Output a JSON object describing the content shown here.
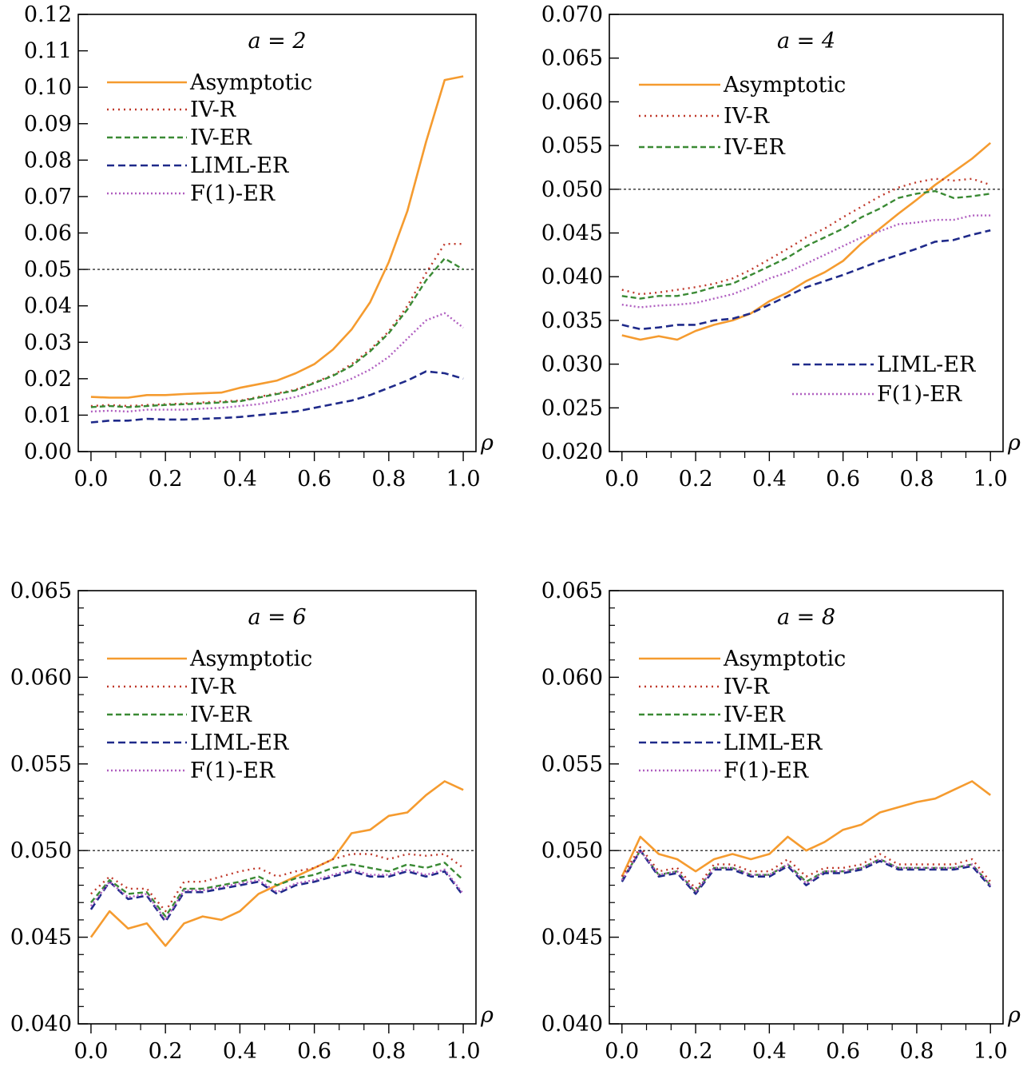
{
  "colors": {
    "asymptotic": "#f59b2f",
    "iv_r": "#c0392b",
    "iv_er": "#3a8a34",
    "liml_er": "#1f2a8a",
    "f1_er": "#b05fc0",
    "reference": "#000000"
  },
  "series_order": [
    "Asymptotic",
    "IV-R",
    "IV-ER",
    "LIML-ER",
    "F(1)-ER"
  ],
  "chart_data": [
    {
      "type": "line",
      "title": "a = 2",
      "xlabel": "ρ",
      "ylabel": "",
      "xlim": [
        0,
        1
      ],
      "ylim": [
        0,
        0.12
      ],
      "reference_y": 0.05,
      "x_ticks": [
        "0.0",
        "0.2",
        "0.4",
        "0.6",
        "0.8",
        "1.0"
      ],
      "y_ticks": [
        "0.00",
        "0.01",
        "0.02",
        "0.03",
        "0.04",
        "0.05",
        "0.06",
        "0.07",
        "0.08",
        "0.09",
        "0.10",
        "0.11",
        "0.12"
      ],
      "legend_placement": "top-left",
      "x": [
        0,
        0.05,
        0.1,
        0.15,
        0.2,
        0.25,
        0.3,
        0.35,
        0.4,
        0.45,
        0.5,
        0.55,
        0.6,
        0.65,
        0.7,
        0.75,
        0.8,
        0.85,
        0.9,
        0.95,
        1.0
      ],
      "series": [
        {
          "name": "Asymptotic",
          "values": [
            0.015,
            0.0148,
            0.0148,
            0.0155,
            0.0155,
            0.0158,
            0.016,
            0.0162,
            0.0175,
            0.0185,
            0.0195,
            0.0215,
            0.024,
            0.028,
            0.0335,
            0.041,
            0.052,
            0.066,
            0.085,
            0.102,
            0.103
          ]
        },
        {
          "name": "IV-R",
          "values": [
            0.0125,
            0.0128,
            0.0125,
            0.0128,
            0.013,
            0.0132,
            0.0135,
            0.0138,
            0.014,
            0.015,
            0.016,
            0.017,
            0.019,
            0.021,
            0.024,
            0.028,
            0.033,
            0.04,
            0.049,
            0.057,
            0.057
          ]
        },
        {
          "name": "IV-ER",
          "values": [
            0.0122,
            0.0125,
            0.0122,
            0.0125,
            0.0128,
            0.013,
            0.0132,
            0.0135,
            0.0138,
            0.0148,
            0.0158,
            0.0168,
            0.0188,
            0.0208,
            0.0235,
            0.0275,
            0.0325,
            0.039,
            0.047,
            0.053,
            0.05
          ]
        },
        {
          "name": "LIML-ER",
          "values": [
            0.008,
            0.0085,
            0.0085,
            0.009,
            0.0088,
            0.0088,
            0.009,
            0.0092,
            0.0095,
            0.01,
            0.0105,
            0.011,
            0.012,
            0.013,
            0.014,
            0.0155,
            0.0175,
            0.0195,
            0.022,
            0.0215,
            0.02
          ]
        },
        {
          "name": "F(1)-ER",
          "values": [
            0.011,
            0.0112,
            0.011,
            0.0115,
            0.0115,
            0.0115,
            0.0118,
            0.012,
            0.0125,
            0.013,
            0.014,
            0.015,
            0.0165,
            0.018,
            0.02,
            0.0225,
            0.026,
            0.031,
            0.036,
            0.038,
            0.034
          ]
        }
      ]
    },
    {
      "type": "line",
      "title": "a = 4",
      "xlabel": "ρ",
      "ylabel": "",
      "xlim": [
        0,
        1
      ],
      "ylim": [
        0.02,
        0.07
      ],
      "reference_y": 0.05,
      "x_ticks": [
        "0.0",
        "0.2",
        "0.4",
        "0.6",
        "0.8",
        "1.0"
      ],
      "y_ticks": [
        "0.020",
        "0.025",
        "0.030",
        "0.035",
        "0.040",
        "0.045",
        "0.050",
        "0.055",
        "0.060",
        "0.065",
        "0.070"
      ],
      "legend_placement": "top-left; LIML-ER and F(1)-ER at bottom-right",
      "x": [
        0,
        0.05,
        0.1,
        0.15,
        0.2,
        0.25,
        0.3,
        0.35,
        0.4,
        0.45,
        0.5,
        0.55,
        0.6,
        0.65,
        0.7,
        0.75,
        0.8,
        0.85,
        0.9,
        0.95,
        1.0
      ],
      "series": [
        {
          "name": "Asymptotic",
          "values": [
            0.0333,
            0.0328,
            0.0332,
            0.0328,
            0.0338,
            0.0345,
            0.035,
            0.0358,
            0.0372,
            0.0382,
            0.0395,
            0.0405,
            0.0418,
            0.0438,
            0.0455,
            0.0472,
            0.0488,
            0.0505,
            0.052,
            0.0535,
            0.0553
          ]
        },
        {
          "name": "IV-R",
          "values": [
            0.0385,
            0.038,
            0.0382,
            0.0385,
            0.0388,
            0.0392,
            0.0398,
            0.0408,
            0.042,
            0.0432,
            0.0445,
            0.0455,
            0.0468,
            0.048,
            0.0492,
            0.0502,
            0.0508,
            0.0512,
            0.051,
            0.0512,
            0.0505
          ]
        },
        {
          "name": "IV-ER",
          "values": [
            0.0378,
            0.0375,
            0.0378,
            0.0378,
            0.0382,
            0.0388,
            0.0392,
            0.0402,
            0.0412,
            0.0422,
            0.0435,
            0.0445,
            0.0455,
            0.0468,
            0.0478,
            0.049,
            0.0495,
            0.0498,
            0.049,
            0.0492,
            0.0495
          ]
        },
        {
          "name": "LIML-ER",
          "values": [
            0.0345,
            0.034,
            0.0342,
            0.0345,
            0.0345,
            0.035,
            0.0352,
            0.0358,
            0.0368,
            0.0378,
            0.0388,
            0.0395,
            0.0402,
            0.041,
            0.0418,
            0.0425,
            0.0432,
            0.044,
            0.0442,
            0.0448,
            0.0453
          ]
        },
        {
          "name": "F(1)-ER",
          "values": [
            0.0368,
            0.0365,
            0.0367,
            0.0368,
            0.037,
            0.0375,
            0.038,
            0.0388,
            0.0398,
            0.0405,
            0.0415,
            0.0425,
            0.0435,
            0.0445,
            0.0452,
            0.046,
            0.0462,
            0.0465,
            0.0465,
            0.047,
            0.047
          ]
        }
      ]
    },
    {
      "type": "line",
      "title": "a = 6",
      "xlabel": "ρ",
      "ylabel": "",
      "xlim": [
        0,
        1
      ],
      "ylim": [
        0.04,
        0.065
      ],
      "reference_y": 0.05,
      "x_ticks": [
        "0.0",
        "0.2",
        "0.4",
        "0.6",
        "0.8",
        "1.0"
      ],
      "y_ticks": [
        "0.040",
        "0.045",
        "0.050",
        "0.055",
        "0.060",
        "0.065"
      ],
      "legend_placement": "top-left",
      "x": [
        0,
        0.05,
        0.1,
        0.15,
        0.2,
        0.25,
        0.3,
        0.35,
        0.4,
        0.45,
        0.5,
        0.55,
        0.6,
        0.65,
        0.7,
        0.75,
        0.8,
        0.85,
        0.9,
        0.95,
        1.0
      ],
      "series": [
        {
          "name": "Asymptotic",
          "values": [
            0.045,
            0.0465,
            0.0455,
            0.0458,
            0.0445,
            0.0458,
            0.0462,
            0.046,
            0.0465,
            0.0475,
            0.048,
            0.0485,
            0.049,
            0.0495,
            0.051,
            0.0512,
            0.052,
            0.0522,
            0.0532,
            0.054,
            0.0535
          ]
        },
        {
          "name": "IV-R",
          "values": [
            0.0475,
            0.0485,
            0.0478,
            0.0478,
            0.0465,
            0.0482,
            0.0482,
            0.0485,
            0.0488,
            0.049,
            0.0485,
            0.0488,
            0.049,
            0.0495,
            0.0498,
            0.0498,
            0.0495,
            0.0498,
            0.0497,
            0.0498,
            0.049
          ]
        },
        {
          "name": "IV-ER",
          "values": [
            0.047,
            0.0483,
            0.0475,
            0.0476,
            0.0462,
            0.0478,
            0.0478,
            0.048,
            0.0482,
            0.0485,
            0.048,
            0.0484,
            0.0486,
            0.049,
            0.0492,
            0.049,
            0.0488,
            0.0492,
            0.049,
            0.0493,
            0.0483
          ]
        },
        {
          "name": "LIML-ER",
          "values": [
            0.0466,
            0.0482,
            0.0472,
            0.0474,
            0.0459,
            0.0476,
            0.0476,
            0.0478,
            0.048,
            0.0482,
            0.0475,
            0.048,
            0.0482,
            0.0485,
            0.0488,
            0.0485,
            0.0485,
            0.0488,
            0.0485,
            0.0488,
            0.0474
          ]
        },
        {
          "name": "F(1)-ER",
          "values": [
            0.0468,
            0.0482,
            0.0473,
            0.0475,
            0.046,
            0.0477,
            0.0477,
            0.0479,
            0.0481,
            0.0483,
            0.0476,
            0.0481,
            0.0483,
            0.0486,
            0.0489,
            0.0486,
            0.0486,
            0.0489,
            0.0486,
            0.0489,
            0.0475
          ]
        }
      ]
    },
    {
      "type": "line",
      "title": "a = 8",
      "xlabel": "ρ",
      "ylabel": "",
      "xlim": [
        0,
        1
      ],
      "ylim": [
        0.04,
        0.065
      ],
      "reference_y": 0.05,
      "x_ticks": [
        "0.0",
        "0.2",
        "0.4",
        "0.6",
        "0.8",
        "1.0"
      ],
      "y_ticks": [
        "0.040",
        "0.045",
        "0.050",
        "0.055",
        "0.060",
        "0.065"
      ],
      "legend_placement": "top-left",
      "x": [
        0,
        0.05,
        0.1,
        0.15,
        0.2,
        0.25,
        0.3,
        0.35,
        0.4,
        0.45,
        0.5,
        0.55,
        0.6,
        0.65,
        0.7,
        0.75,
        0.8,
        0.85,
        0.9,
        0.95,
        1.0
      ],
      "series": [
        {
          "name": "Asymptotic",
          "values": [
            0.0485,
            0.0508,
            0.0498,
            0.0495,
            0.0488,
            0.0495,
            0.0498,
            0.0495,
            0.0498,
            0.0508,
            0.05,
            0.0505,
            0.0512,
            0.0515,
            0.0522,
            0.0525,
            0.0528,
            0.053,
            0.0535,
            0.054,
            0.0532
          ]
        },
        {
          "name": "IV-R",
          "values": [
            0.0485,
            0.0502,
            0.0488,
            0.049,
            0.0478,
            0.0492,
            0.0492,
            0.0488,
            0.0488,
            0.0495,
            0.0485,
            0.049,
            0.049,
            0.0492,
            0.0498,
            0.0492,
            0.0492,
            0.0492,
            0.0492,
            0.0495,
            0.0482
          ]
        },
        {
          "name": "IV-ER",
          "values": [
            0.0483,
            0.05,
            0.0486,
            0.0488,
            0.0476,
            0.049,
            0.049,
            0.0486,
            0.0486,
            0.0492,
            0.0482,
            0.0488,
            0.0488,
            0.049,
            0.0495,
            0.049,
            0.049,
            0.049,
            0.049,
            0.0492,
            0.048
          ]
        },
        {
          "name": "LIML-ER",
          "values": [
            0.0482,
            0.05,
            0.0485,
            0.0487,
            0.0475,
            0.0489,
            0.0489,
            0.0485,
            0.0485,
            0.0491,
            0.048,
            0.0487,
            0.0487,
            0.0489,
            0.0494,
            0.0489,
            0.0489,
            0.0489,
            0.0489,
            0.0491,
            0.0479
          ]
        },
        {
          "name": "F(1)-ER",
          "values": [
            0.0483,
            0.05,
            0.0486,
            0.0488,
            0.0476,
            0.049,
            0.049,
            0.0486,
            0.0486,
            0.0492,
            0.0481,
            0.0488,
            0.0488,
            0.049,
            0.0495,
            0.049,
            0.049,
            0.049,
            0.049,
            0.0492,
            0.048
          ]
        }
      ]
    }
  ]
}
